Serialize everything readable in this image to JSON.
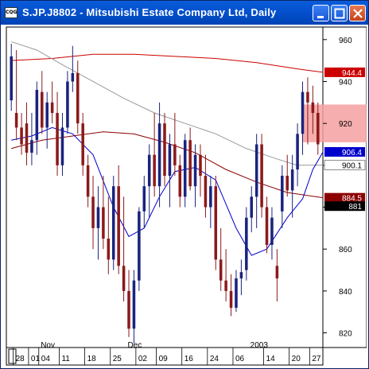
{
  "window": {
    "title": "S.JP.J8802 - Mitsubishi Estate Company Ltd, Daily",
    "icon_name": "chart-app-icon",
    "buttons": [
      "minimize-icon",
      "maximize-icon",
      "close-icon"
    ]
  },
  "chart_data": {
    "type": "candlestick",
    "title": "S.JP.J8802 - Mitsubishi Estate Company Ltd, Daily",
    "ylim": [
      813,
      966
    ],
    "y_ticks": [
      "960",
      "940",
      "920",
      "900",
      "880",
      "860",
      "840",
      "820"
    ],
    "x_ticks": [
      "28",
      "01",
      "04",
      "11",
      "18",
      "25",
      "02",
      "09",
      "16",
      "24",
      "06",
      "14",
      "20",
      "27"
    ],
    "month_labels": [
      "Nov",
      "Dec",
      "2003"
    ],
    "price_tags": [
      {
        "label": "944.4",
        "color": "#cc0000"
      },
      {
        "label": "906.4",
        "color": "#0000cc"
      },
      {
        "label": "900.1",
        "color": "#888888"
      },
      {
        "label": "884.5",
        "color": "#8b0000"
      },
      {
        "label": "881",
        "color": "#000000"
      }
    ],
    "highlight_zone": {
      "y_low": 911,
      "y_high": 929,
      "color": "#f4a0a0"
    },
    "colors": {
      "up": "#1a237e",
      "down": "#8b1a1a",
      "ma_long": "#cc0000",
      "ma_mid": "#8b0000",
      "ma_gray": "#999999",
      "ma_short": "#0000cc"
    },
    "series": [
      {
        "name": "ohlc",
        "values": [
          [
            931,
            958,
            926,
            952
          ],
          [
            925,
            955,
            912,
            918
          ],
          [
            918,
            925,
            905,
            910
          ],
          [
            920,
            930,
            900,
            906
          ],
          [
            906,
            925,
            900,
            912
          ],
          [
            912,
            940,
            905,
            936
          ],
          [
            935,
            945,
            915,
            918
          ],
          [
            918,
            935,
            908,
            930
          ],
          [
            930,
            940,
            920,
            925
          ],
          [
            925,
            935,
            895,
            900
          ],
          [
            900,
            925,
            895,
            918
          ],
          [
            918,
            945,
            915,
            940
          ],
          [
            940,
            957,
            935,
            944
          ],
          [
            944,
            950,
            915,
            920
          ],
          [
            920,
            925,
            895,
            900
          ],
          [
            900,
            905,
            880,
            885
          ],
          [
            885,
            895,
            860,
            870
          ],
          [
            870,
            890,
            855,
            880
          ],
          [
            880,
            895,
            860,
            865
          ],
          [
            865,
            885,
            848,
            855
          ],
          [
            855,
            895,
            850,
            890
          ],
          [
            890,
            900,
            848,
            852
          ],
          [
            852,
            885,
            835,
            840
          ],
          [
            840,
            850,
            818,
            822
          ],
          [
            822,
            850,
            815,
            845
          ],
          [
            845,
            880,
            840,
            878
          ],
          [
            878,
            895,
            870,
            890
          ],
          [
            890,
            910,
            875,
            905
          ],
          [
            905,
            925,
            885,
            890
          ],
          [
            890,
            930,
            880,
            920
          ],
          [
            920,
            925,
            890,
            895
          ],
          [
            895,
            915,
            880,
            910
          ],
          [
            910,
            925,
            895,
            900
          ],
          [
            900,
            905,
            880,
            885
          ],
          [
            885,
            915,
            880,
            912
          ],
          [
            912,
            918,
            888,
            890
          ],
          [
            890,
            910,
            880,
            905
          ],
          [
            905,
            910,
            885,
            895
          ],
          [
            895,
            905,
            875,
            880
          ],
          [
            880,
            895,
            870,
            890
          ],
          [
            890,
            895,
            850,
            855
          ],
          [
            855,
            870,
            840,
            845
          ],
          [
            845,
            860,
            835,
            840
          ],
          [
            840,
            848,
            828,
            832
          ],
          [
            832,
            850,
            830,
            846
          ],
          [
            846,
            855,
            838,
            849
          ],
          [
            850,
            880,
            845,
            875
          ],
          [
            875,
            890,
            868,
            885
          ],
          [
            885,
            915,
            870,
            910
          ],
          [
            910,
            915,
            875,
            880
          ],
          [
            880,
            885,
            858,
            862
          ],
          [
            862,
            880,
            855,
            875
          ],
          [
            852,
            860,
            835,
            846
          ],
          [
            878,
            900,
            870,
            895
          ],
          [
            895,
            905,
            885,
            888
          ],
          [
            888,
            905,
            875,
            898
          ],
          [
            898,
            920,
            890,
            915
          ],
          [
            915,
            940,
            905,
            935
          ],
          [
            935,
            942,
            910,
            930
          ],
          [
            930,
            938,
            915,
            925
          ],
          [
            925,
            930,
            905,
            910
          ]
        ]
      }
    ],
    "moving_averages": [
      {
        "key": "ma_long",
        "values": [
          {
            "i": 0,
            "v": 950
          },
          {
            "i": 8,
            "v": 951
          },
          {
            "i": 16,
            "v": 953
          },
          {
            "i": 24,
            "v": 953
          },
          {
            "i": 32,
            "v": 952
          },
          {
            "i": 40,
            "v": 951
          },
          {
            "i": 48,
            "v": 949
          },
          {
            "i": 56,
            "v": 946
          },
          {
            "i": 61,
            "v": 944.4
          }
        ]
      },
      {
        "key": "ma_gray",
        "values": [
          {
            "i": 0,
            "v": 959
          },
          {
            "i": 5,
            "v": 955
          },
          {
            "i": 10,
            "v": 948
          },
          {
            "i": 16,
            "v": 940
          },
          {
            "i": 22,
            "v": 932
          },
          {
            "i": 28,
            "v": 925
          },
          {
            "i": 34,
            "v": 920
          },
          {
            "i": 40,
            "v": 915
          },
          {
            "i": 46,
            "v": 908
          },
          {
            "i": 52,
            "v": 903
          },
          {
            "i": 56,
            "v": 900
          },
          {
            "i": 61,
            "v": 900.1
          }
        ]
      },
      {
        "key": "ma_mid",
        "values": [
          {
            "i": 0,
            "v": 908
          },
          {
            "i": 6,
            "v": 912
          },
          {
            "i": 12,
            "v": 914
          },
          {
            "i": 18,
            "v": 916
          },
          {
            "i": 24,
            "v": 915
          },
          {
            "i": 30,
            "v": 911
          },
          {
            "i": 36,
            "v": 906
          },
          {
            "i": 42,
            "v": 898
          },
          {
            "i": 48,
            "v": 892
          },
          {
            "i": 54,
            "v": 887
          },
          {
            "i": 61,
            "v": 884.5
          }
        ]
      },
      {
        "key": "ma_short",
        "values": [
          {
            "i": 0,
            "v": 912
          },
          {
            "i": 4,
            "v": 914
          },
          {
            "i": 8,
            "v": 918
          },
          {
            "i": 12,
            "v": 915
          },
          {
            "i": 16,
            "v": 905
          },
          {
            "i": 20,
            "v": 880
          },
          {
            "i": 23,
            "v": 866
          },
          {
            "i": 26,
            "v": 870
          },
          {
            "i": 29,
            "v": 885
          },
          {
            "i": 32,
            "v": 897
          },
          {
            "i": 36,
            "v": 899
          },
          {
            "i": 40,
            "v": 893
          },
          {
            "i": 44,
            "v": 870
          },
          {
            "i": 47,
            "v": 857
          },
          {
            "i": 50,
            "v": 860
          },
          {
            "i": 54,
            "v": 875
          },
          {
            "i": 57,
            "v": 884
          },
          {
            "i": 59,
            "v": 898
          },
          {
            "i": 61,
            "v": 906.4
          }
        ]
      }
    ]
  }
}
